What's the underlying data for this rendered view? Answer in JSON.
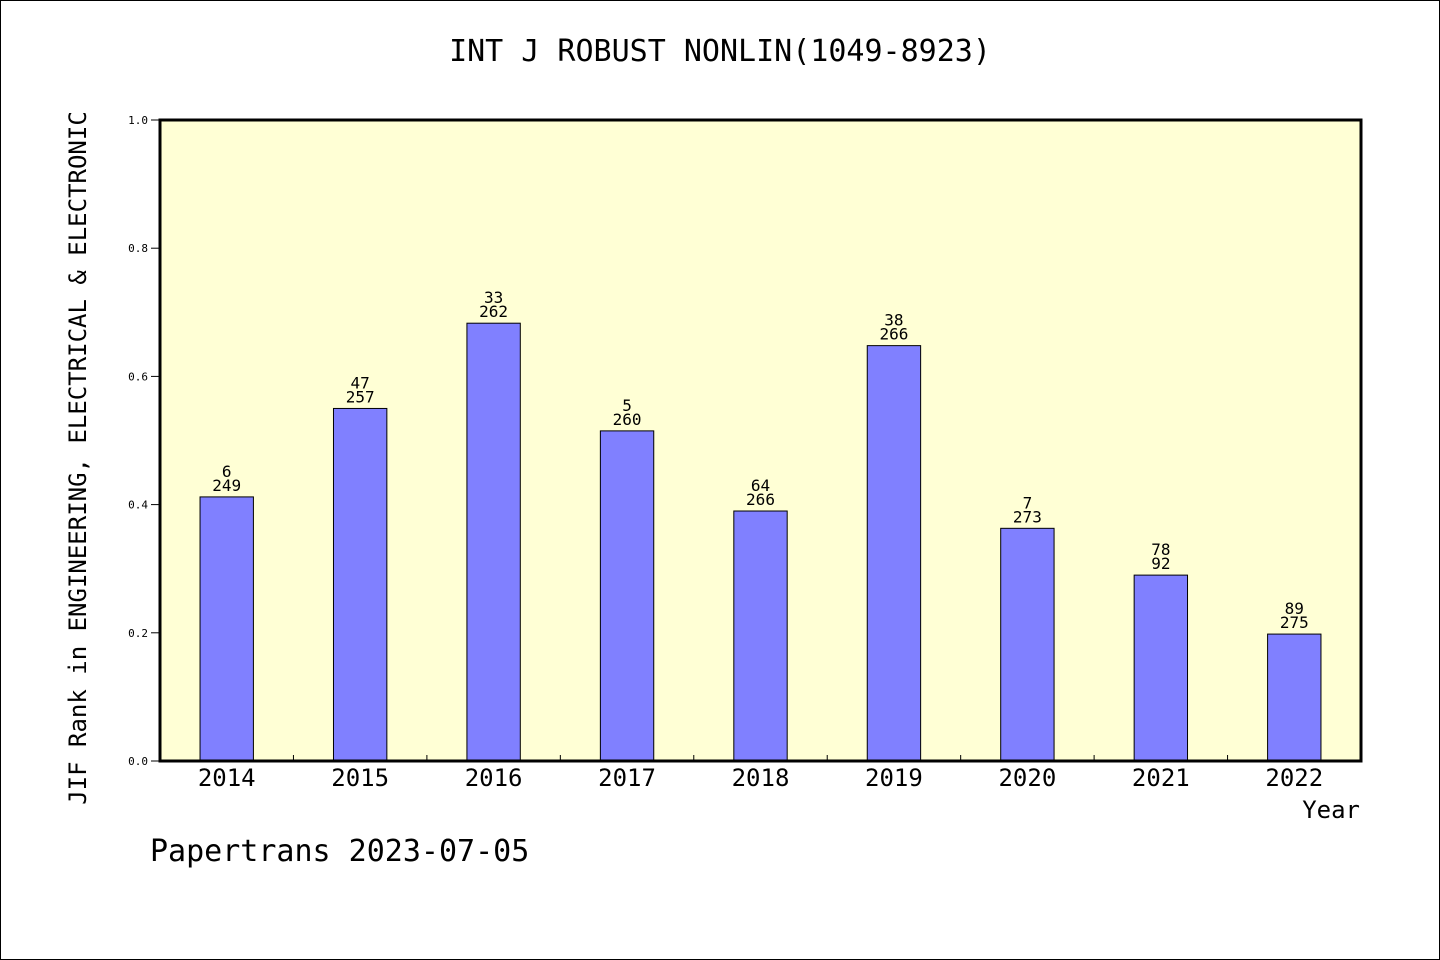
{
  "chart_data": {
    "type": "bar",
    "title": "INT J ROBUST NONLIN(1049-8923)",
    "xlabel": "Year",
    "ylabel": "JIF Rank in ENGINEERING, ELECTRICAL & ELECTRONIC",
    "ylim": [
      0,
      1.0
    ],
    "yticks": [
      "0.0",
      "0.2",
      "0.4",
      "0.6",
      "0.8",
      "1.0"
    ],
    "categories": [
      "2014",
      "2015",
      "2016",
      "2017",
      "2018",
      "2019",
      "2020",
      "2021",
      "2022"
    ],
    "values": [
      0.412,
      0.55,
      0.683,
      0.515,
      0.39,
      0.648,
      0.363,
      0.29,
      0.198
    ],
    "labels_top": [
      "6",
      "47",
      "33",
      "5",
      "64",
      "38",
      "7",
      "78",
      "89"
    ],
    "labels_bottom": [
      "249",
      "257",
      "262",
      "260",
      "266",
      "266",
      "273",
      "92",
      "275"
    ],
    "colors": {
      "bar": "#8080ff",
      "plot_background": "#ffffd5",
      "axis": "#000000"
    },
    "grid": false,
    "legend": "none"
  },
  "footer": "Papertrans 2023-07-05"
}
